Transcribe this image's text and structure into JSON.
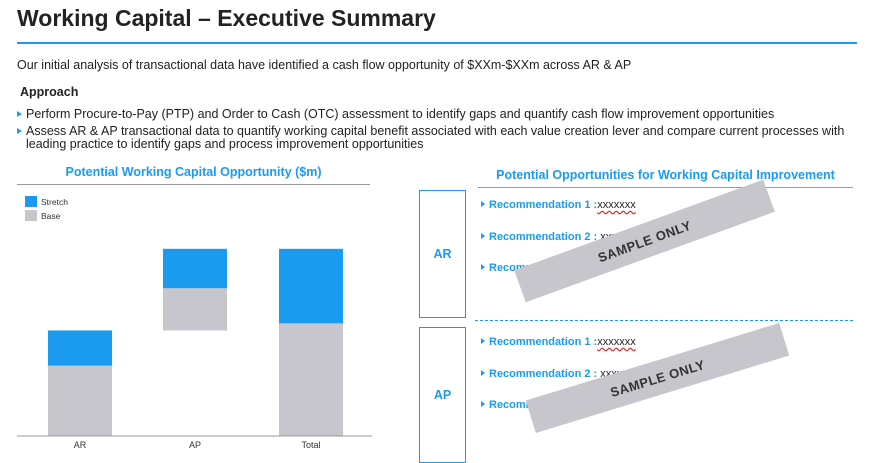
{
  "title": "Working Capital – Executive Summary",
  "intro": "Our initial analysis of transactional data have identified a cash flow opportunity of $XXm-$XXm across AR & AP",
  "approach": {
    "heading": "Approach",
    "bullets": [
      "Perform Procure-to-Pay (PTP) and Order to Cash (OTC) assessment to identify gaps and quantify cash flow improvement opportunities",
      "Assess AR & AP transactional data to quantify working capital benefit associated with each value creation lever and compare current processes with leading practice to identify gaps and process improvement opportunities"
    ]
  },
  "left_section": {
    "heading": "Potential Working Capital Opportunity ($m)"
  },
  "right_section": {
    "heading": "Potential Opportunities for Working Capital Improvement",
    "groups": [
      {
        "label": "AR",
        "recommendations": [
          {
            "label": "Recommendation 1 :",
            "value": "xxxxxxx"
          },
          {
            "label": "Recommendation 2 : ",
            "value": "xxxxx"
          },
          {
            "label": "Recomm",
            "value": ""
          }
        ],
        "stamp": "SAMPLE ONLY"
      },
      {
        "label": "AP",
        "recommendations": [
          {
            "label": "Recommendation 1 :",
            "value": "xxxxxxx"
          },
          {
            "label": "Recommendation 2 : ",
            "value": "xxxxx"
          },
          {
            "label": "Recomm",
            "value": ""
          }
        ],
        "stamp": "SAMPLE ONLY"
      }
    ]
  },
  "chart_data": {
    "type": "bar",
    "stacked": true,
    "categories": [
      "AR",
      "AP",
      "Total"
    ],
    "series": [
      {
        "name": "Base",
        "values": [
          50,
          30,
          80
        ],
        "color": "#c6c6cc",
        "offsets": [
          0,
          75,
          0
        ]
      },
      {
        "name": "Stretch",
        "values": [
          25,
          28,
          53
        ],
        "color": "#1a9bf0"
      }
    ],
    "ylim": [
      0,
      135
    ],
    "legend": "top-left",
    "grid": false,
    "title": "",
    "xlabel": "",
    "ylabel": ""
  }
}
